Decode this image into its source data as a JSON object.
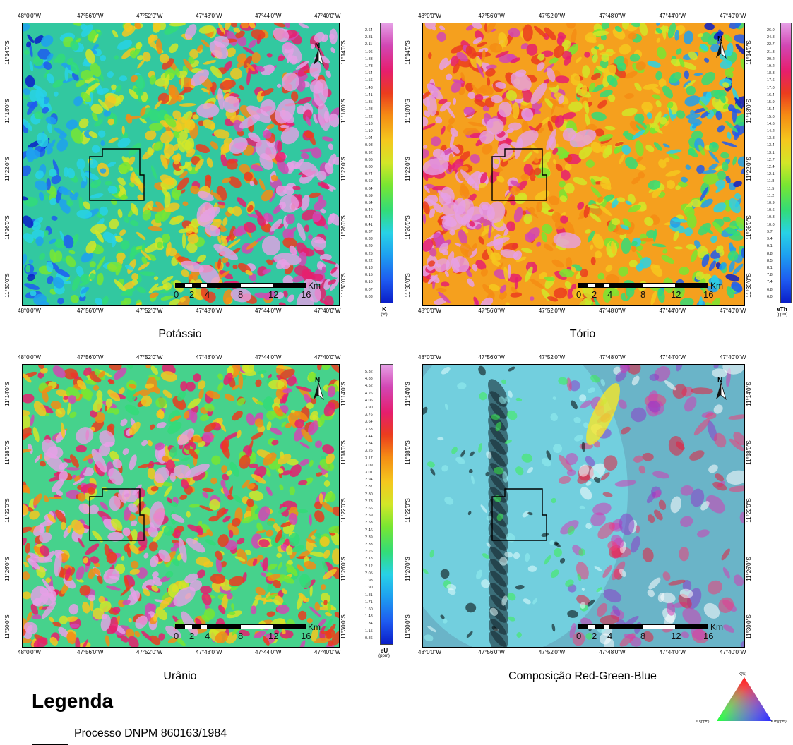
{
  "panels": [
    {
      "id": "potassio",
      "title": "Potássio",
      "top_ticks": [
        "48°0'0\"W",
        "47°56'0\"W",
        "47°52'0\"W",
        "47°48'0\"W",
        "47°44'0\"W",
        "47°40'0\"W"
      ],
      "bottom_ticks": [
        "48°0'0\"W",
        "47°56'0\"W",
        "47°52'0\"W",
        "47°48'0\"W",
        "47°44'0\"W",
        "47°40'0\"W"
      ],
      "left_ticks": [
        "11°14'0\"S",
        "11°18'0\"S",
        "11°22'0\"S",
        "11°26'0\"S",
        "11°30'0\"S"
      ],
      "right_ticks": [
        "11°14'0\"S",
        "11°18'0\"S",
        "11°22'0\"S",
        "11°26'0\"S",
        "11°30'0\"S"
      ],
      "colorbar": {
        "unit": "K",
        "unit_sub": "(%)",
        "values": [
          "2.64",
          "2.31",
          "2.11",
          "1.96",
          "1.83",
          "1.73",
          "1.64",
          "1.56",
          "1.48",
          "1.41",
          "1.35",
          "1.28",
          "1.22",
          "1.16",
          "1.10",
          "1.04",
          "0.98",
          "0.92",
          "0.86",
          "0.80",
          "0.74",
          "0.69",
          "0.64",
          "0.59",
          "0.54",
          "0.49",
          "0.45",
          "0.41",
          "0.37",
          "0.33",
          "0.29",
          "0.25",
          "0.22",
          "0.18",
          "0.15",
          "0.10",
          "0.07",
          "0.03"
        ]
      },
      "scale": {
        "labels": [
          "0",
          "2",
          "4",
          "8",
          "12",
          "16"
        ],
        "unit": "Km"
      },
      "north": "N",
      "pattern": "potassium"
    },
    {
      "id": "torio",
      "title": "Tório",
      "top_ticks": [
        "48°0'0\"W",
        "47°56'0\"W",
        "47°52'0\"W",
        "47°48'0\"W",
        "47°44'0\"W",
        "47°40'0\"W"
      ],
      "bottom_ticks": [
        "48°0'0\"W",
        "47°56'0\"W",
        "47°52'0\"W",
        "47°48'0\"W",
        "47°44'0\"W",
        "47°40'0\"W"
      ],
      "left_ticks": [
        "11°14'0\"S",
        "11°18'0\"S",
        "11°22'0\"S",
        "11°26'0\"S",
        "11°30'0\"S"
      ],
      "right_ticks": [
        "11°14'0\"S",
        "11°18'0\"S",
        "11°22'0\"S",
        "11°26'0\"S",
        "11°30'0\"S"
      ],
      "colorbar": {
        "unit": "eTh",
        "unit_sub": "(ppm)",
        "values": [
          "26.0",
          "24.8",
          "22.7",
          "21.3",
          "20.2",
          "19.2",
          "18.3",
          "17.6",
          "17.0",
          "16.4",
          "15.9",
          "15.4",
          "15.0",
          "14.6",
          "14.2",
          "13.8",
          "13.4",
          "13.1",
          "12.7",
          "12.4",
          "12.1",
          "11.8",
          "11.5",
          "11.2",
          "10.9",
          "10.6",
          "10.3",
          "10.0",
          "9.7",
          "9.4",
          "9.1",
          "8.8",
          "8.5",
          "8.1",
          "7.8",
          "7.4",
          "6.8",
          "6.0"
        ]
      },
      "scale": {
        "labels": [
          "0",
          "2",
          "4",
          "8",
          "12",
          "16"
        ],
        "unit": "Km"
      },
      "north": "N",
      "pattern": "thorium"
    },
    {
      "id": "uranio",
      "title": "Urânio",
      "top_ticks": [
        "48°0'0\"W",
        "47°56'0\"W",
        "47°52'0\"W",
        "47°48'0\"W",
        "47°44'0\"W",
        "47°40'0\"W"
      ],
      "bottom_ticks": [
        "48°0'0\"W",
        "47°56'0\"W",
        "47°52'0\"W",
        "47°48'0\"W",
        "47°44'0\"W",
        "47°40'0\"W"
      ],
      "left_ticks": [
        "11°14'0\"S",
        "11°18'0\"S",
        "11°22'0\"S",
        "11°26'0\"S",
        "11°30'0\"S"
      ],
      "right_ticks": [
        "11°14'0\"S",
        "11°18'0\"S",
        "11°22'0\"S",
        "11°26'0\"S",
        "11°30'0\"S"
      ],
      "colorbar": {
        "unit": "eU",
        "unit_sub": "(ppm)",
        "values": [
          "5.32",
          "4.88",
          "4.52",
          "4.26",
          "4.06",
          "3.90",
          "3.76",
          "3.64",
          "3.53",
          "3.44",
          "3.34",
          "3.26",
          "3.17",
          "3.09",
          "3.01",
          "2.94",
          "2.87",
          "2.80",
          "2.73",
          "2.66",
          "2.59",
          "2.53",
          "2.46",
          "2.39",
          "2.33",
          "2.26",
          "2.18",
          "2.12",
          "2.05",
          "1.98",
          "1.90",
          "1.81",
          "1.71",
          "1.60",
          "1.48",
          "1.34",
          "1.15",
          "0.86"
        ]
      },
      "scale": {
        "labels": [
          "0",
          "2",
          "4",
          "8",
          "12",
          "16"
        ],
        "unit": "Km"
      },
      "north": "N",
      "pattern": "uranium"
    },
    {
      "id": "rgb",
      "title": "Composição Red-Green-Blue",
      "top_ticks": [
        "48°0'0\"W",
        "47°56'0\"W",
        "47°52'0\"W",
        "47°48'0\"W",
        "47°44'0\"W",
        "47°40'0\"W"
      ],
      "bottom_ticks": [
        "48°0'0\"W",
        "47°56'0\"W",
        "47°52'0\"W",
        "47°48'0\"W",
        "47°44'0\"W",
        "47°40'0\"W"
      ],
      "left_ticks": [
        "11°14'0\"S",
        "11°18'0\"S",
        "11°22'0\"S",
        "11°26'0\"S",
        "11°30'0\"S"
      ],
      "right_ticks": [
        "11°14'0\"S",
        "11°18'0\"S",
        "11°22'0\"S",
        "11°26'0\"S",
        "11°30'0\"S"
      ],
      "colorbar": null,
      "scale": {
        "labels": [
          "0",
          "2",
          "4",
          "8",
          "12",
          "16"
        ],
        "unit": "Km"
      },
      "north": "N",
      "pattern": "rgb"
    }
  ],
  "ternary": {
    "top": "K(%)",
    "left": "eU(ppm)",
    "right": "eTh(ppm)"
  },
  "legend": {
    "title": "Legenda",
    "items": [
      {
        "label": "Processo DNPM 860163/1984"
      }
    ]
  },
  "colors": {
    "ramp": [
      "#0a1ec8",
      "#1e5af0",
      "#1ea0f0",
      "#28d2e6",
      "#32dc78",
      "#78e632",
      "#d2e628",
      "#f5c81e",
      "#f58c14",
      "#eb3c1e",
      "#e61e6e",
      "#d246b4",
      "#e6a0e6"
    ],
    "polygon": "#000000"
  }
}
